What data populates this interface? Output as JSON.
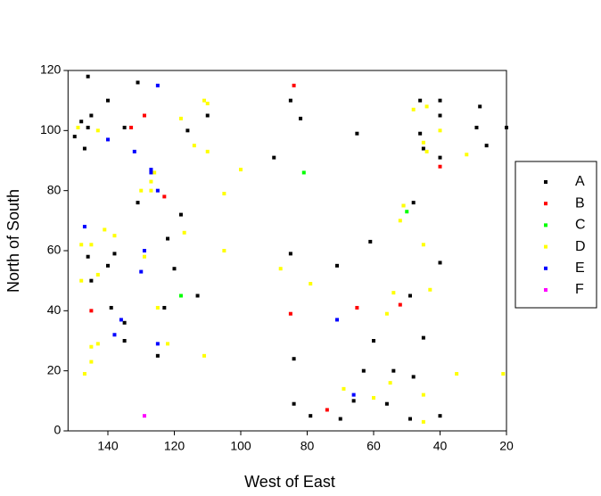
{
  "chart_data": {
    "type": "scatter",
    "x_label": "West of East",
    "y_label": "North of South",
    "xlim": [
      152,
      20
    ],
    "ylim": [
      0,
      120
    ],
    "xticks": [
      140,
      120,
      100,
      80,
      60,
      40,
      20
    ],
    "yticks": [
      0,
      20,
      40,
      60,
      80,
      100,
      120
    ],
    "grid": false,
    "legend": "right",
    "series": [
      {
        "name": "A",
        "color": "#000000",
        "x": [
          146,
          150,
          148,
          147,
          146,
          145,
          140,
          135,
          131,
          146,
          145,
          140,
          138,
          139,
          135,
          135,
          131,
          125,
          123,
          122,
          120,
          118,
          116,
          113,
          110,
          90,
          85,
          82,
          85,
          84,
          84,
          79,
          71,
          70,
          65,
          66,
          61,
          60,
          63,
          56,
          54,
          51,
          49,
          49,
          48,
          48,
          46,
          46,
          45,
          45,
          40,
          40,
          40,
          40,
          40,
          28,
          29,
          26,
          20
        ],
        "values": [
          118,
          98,
          103,
          94,
          101,
          105,
          110,
          101,
          116,
          58,
          50,
          55,
          59,
          41,
          36,
          30,
          76,
          25,
          41,
          64,
          54,
          72,
          100,
          45,
          105,
          91,
          110,
          104,
          59,
          24,
          9,
          5,
          55,
          4,
          99,
          10,
          63,
          30,
          20,
          9,
          20,
          75,
          45,
          4,
          76,
          18,
          110,
          99,
          94,
          31,
          110,
          105,
          91,
          56,
          5,
          108,
          101,
          95,
          101
        ]
      },
      {
        "name": "B",
        "color": "#ff0000",
        "x": [
          84,
          129,
          133,
          123,
          145,
          85,
          65,
          52,
          74,
          40
        ],
        "values": [
          115,
          105,
          101,
          78,
          40,
          39,
          41,
          42,
          7,
          88
        ]
      },
      {
        "name": "C",
        "color": "#00ff00",
        "x": [
          81,
          50,
          118
        ],
        "values": [
          86,
          73,
          45
        ]
      },
      {
        "name": "D",
        "color": "#ffff00",
        "x": [
          149,
          143,
          148,
          145,
          148,
          143,
          141,
          138,
          147,
          145,
          145,
          143,
          130,
          127,
          127,
          126,
          129,
          125,
          122,
          117,
          118,
          114,
          111,
          110,
          110,
          111,
          105,
          105,
          100,
          88,
          79,
          69,
          60,
          56,
          54,
          55,
          52,
          51,
          48,
          45,
          44,
          44,
          45,
          43,
          45,
          45,
          40,
          35,
          32,
          21
        ],
        "values": [
          101,
          100,
          62,
          62,
          50,
          52,
          67,
          65,
          19,
          28,
          23,
          29,
          80,
          80,
          83,
          86,
          58,
          41,
          29,
          66,
          104,
          95,
          110,
          109,
          93,
          25,
          79,
          60,
          87,
          54,
          49,
          14,
          11,
          39,
          46,
          16,
          70,
          75,
          107,
          96,
          108,
          93,
          62,
          47,
          12,
          3,
          100,
          19,
          92,
          19
        ]
      },
      {
        "name": "E",
        "color": "#0000ff",
        "x": [
          125,
          140,
          132,
          127,
          127,
          125,
          147,
          129,
          130,
          136,
          138,
          125,
          71,
          66
        ],
        "values": [
          115,
          97,
          93,
          87,
          86,
          80,
          68,
          60,
          53,
          37,
          32,
          29,
          37,
          12
        ]
      },
      {
        "name": "F",
        "color": "#ff00ff",
        "x": [
          129
        ],
        "values": [
          5
        ]
      }
    ]
  }
}
